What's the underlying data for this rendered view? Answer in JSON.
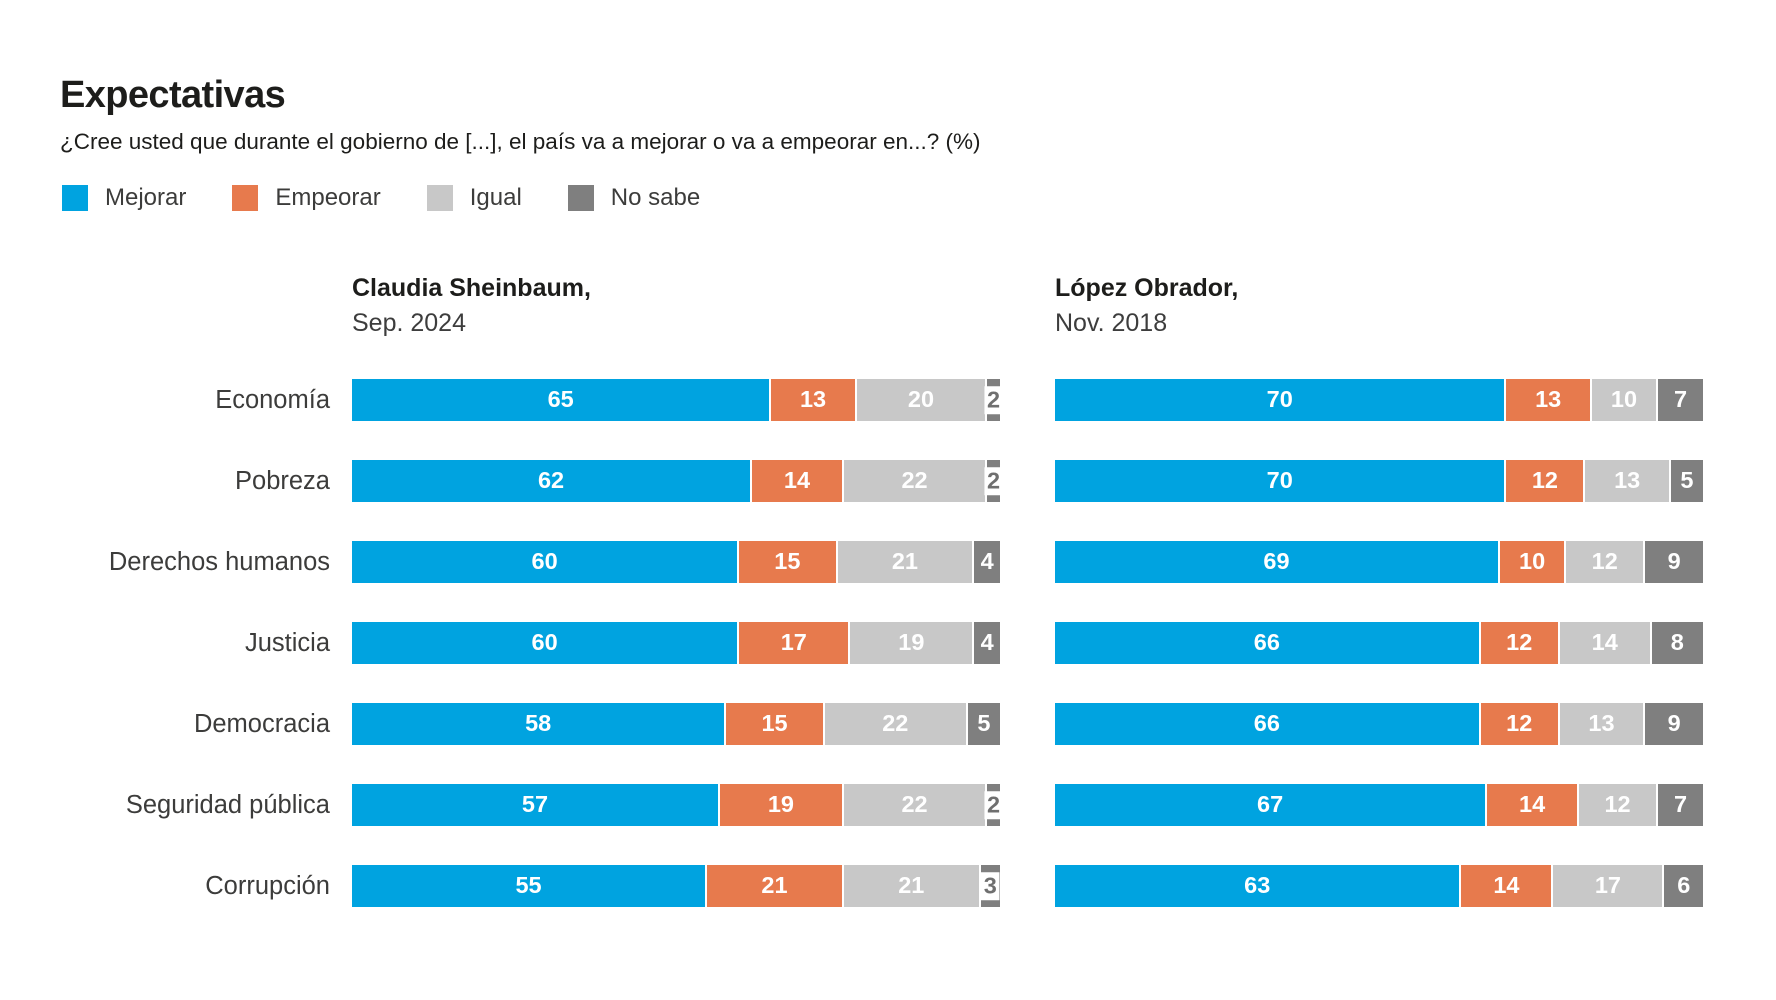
{
  "header": {
    "title": "Expectativas",
    "subtitle": "¿Cree usted que durante el gobierno de [...], el país va a mejorar o va a empeorar en...?  (%)"
  },
  "legend": [
    {
      "label": "Mejorar",
      "color": "#00A3E0"
    },
    {
      "label": "Empeorar",
      "color": "#E77A4D"
    },
    {
      "label": "Igual",
      "color": "#C8C8C8"
    },
    {
      "label": "No sabe",
      "color": "#7F7F7F"
    }
  ],
  "columns": [
    {
      "name": "Claudia Sheinbaum,",
      "date": "Sep. 2024"
    },
    {
      "name": "López Obrador,",
      "date": "Nov. 2018"
    }
  ],
  "chart_data": {
    "type": "bar",
    "stacked": true,
    "orientation": "horizontal",
    "unit": "%",
    "xlim": [
      0,
      100
    ],
    "grid": false,
    "legend_position": "top",
    "series_labels": [
      "Mejorar",
      "Empeorar",
      "Igual",
      "No sabe"
    ],
    "categories": [
      "Economía",
      "Pobreza",
      "Derechos humanos",
      "Justicia",
      "Democracia",
      "Seguridad pública",
      "Corrupción"
    ],
    "panels": [
      {
        "name": "Claudia Sheinbaum,",
        "date": "Sep. 2024",
        "rows": [
          [
            65,
            13,
            20,
            2
          ],
          [
            62,
            14,
            22,
            2
          ],
          [
            60,
            15,
            21,
            4
          ],
          [
            60,
            17,
            19,
            4
          ],
          [
            58,
            15,
            22,
            5
          ],
          [
            57,
            19,
            22,
            2
          ],
          [
            55,
            21,
            21,
            3
          ]
        ]
      },
      {
        "name": "López Obrador,",
        "date": "Nov. 2018",
        "rows": [
          [
            70,
            13,
            10,
            7
          ],
          [
            70,
            12,
            13,
            5
          ],
          [
            69,
            10,
            12,
            9
          ],
          [
            66,
            12,
            14,
            8
          ],
          [
            66,
            12,
            13,
            9
          ],
          [
            67,
            14,
            12,
            7
          ],
          [
            63,
            14,
            17,
            6
          ]
        ]
      }
    ]
  }
}
